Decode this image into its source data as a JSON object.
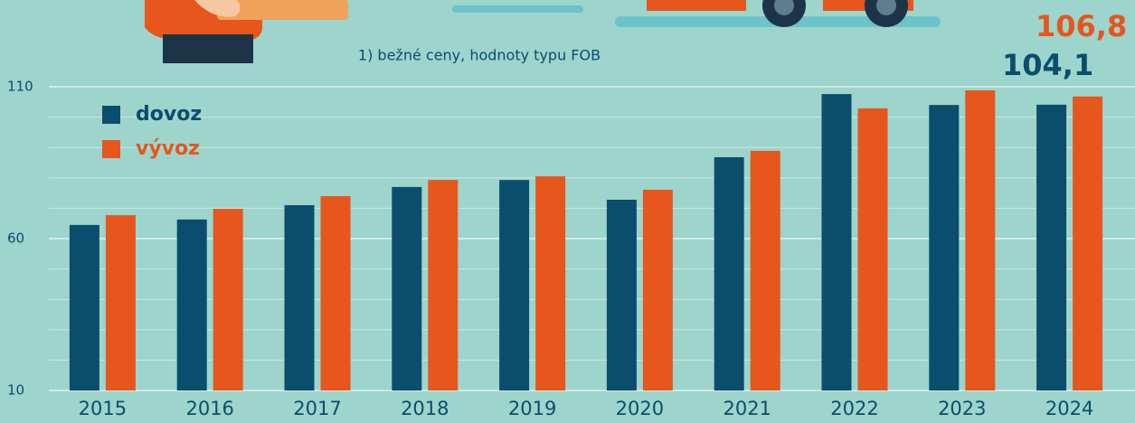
{
  "chart_data": {
    "type": "bar",
    "note": "1) bežné ceny, hodnoty typu FOB",
    "categories": [
      "2015",
      "2016",
      "2017",
      "2018",
      "2019",
      "2020",
      "2021",
      "2022",
      "2023",
      "2024"
    ],
    "series": [
      {
        "name": "dovoz",
        "color": "#0b4d6d",
        "values": [
          64.5,
          66.3,
          71.0,
          77.0,
          79.3,
          72.8,
          86.8,
          107.6,
          104.0,
          104.1
        ],
        "value_labels": [
          null,
          null,
          null,
          null,
          null,
          null,
          null,
          null,
          null,
          "104,1"
        ]
      },
      {
        "name": "vývoz",
        "color": "#e6561d",
        "values": [
          67.7,
          69.8,
          74.0,
          79.3,
          80.5,
          76.1,
          88.9,
          102.9,
          108.8,
          106.8
        ],
        "value_labels": [
          null,
          null,
          null,
          null,
          null,
          null,
          null,
          null,
          null,
          "106,8"
        ]
      }
    ],
    "ylim": [
      10,
      110
    ],
    "yticks": [
      10,
      60,
      110
    ],
    "minor_yticks": [
      20,
      30,
      40,
      50,
      70,
      80,
      90,
      100
    ],
    "grid": true,
    "legend": "top-left"
  }
}
